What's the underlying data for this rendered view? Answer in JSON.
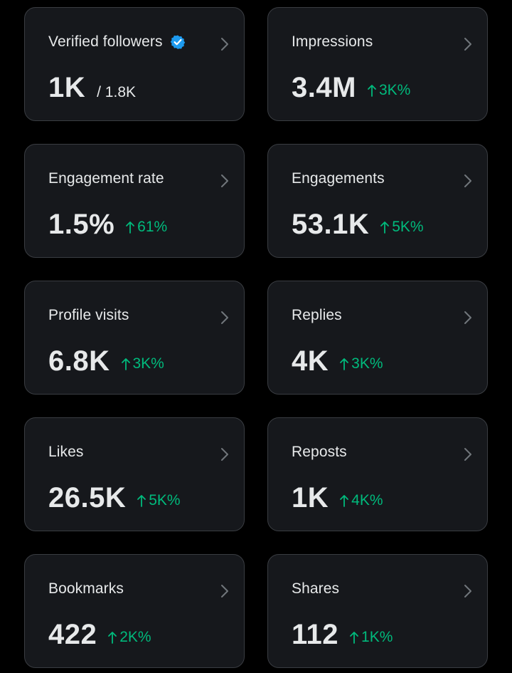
{
  "colors": {
    "background": "#000000",
    "card": "#16181c",
    "border": "#3a3d42",
    "text": "#e7e9ea",
    "positive": "#00ba7c",
    "verified": "#1d9bf0"
  },
  "metrics": [
    {
      "title": "Verified followers",
      "value": "1K",
      "total": "/ 1.8K",
      "change": "",
      "verified": true
    },
    {
      "title": "Impressions",
      "value": "3.4M",
      "total": "",
      "change": "3K%",
      "verified": false
    },
    {
      "title": "Engagement rate",
      "value": "1.5%",
      "total": "",
      "change": "61%",
      "verified": false
    },
    {
      "title": "Engagements",
      "value": "53.1K",
      "total": "",
      "change": "5K%",
      "verified": false
    },
    {
      "title": "Profile visits",
      "value": "6.8K",
      "total": "",
      "change": "3K%",
      "verified": false
    },
    {
      "title": "Replies",
      "value": "4K",
      "total": "",
      "change": "3K%",
      "verified": false
    },
    {
      "title": "Likes",
      "value": "26.5K",
      "total": "",
      "change": "5K%",
      "verified": false
    },
    {
      "title": "Reposts",
      "value": "1K",
      "total": "",
      "change": "4K%",
      "verified": false
    },
    {
      "title": "Bookmarks",
      "value": "422",
      "total": "",
      "change": "2K%",
      "verified": false
    },
    {
      "title": "Shares",
      "value": "112",
      "total": "",
      "change": "1K%",
      "verified": false
    }
  ]
}
